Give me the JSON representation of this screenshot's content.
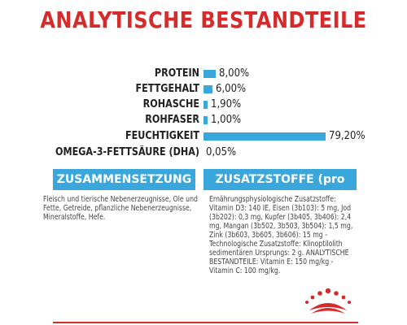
{
  "title": "ANALYTISCHE BESTANDTEILE",
  "colors": {
    "accent_red": "#d52b2b",
    "bar_blue": "#3aa7dc"
  },
  "chart_data": {
    "type": "bar",
    "orientation": "horizontal",
    "categories": [
      "PROTEIN",
      "FETTGEHALT",
      "ROHASCHE",
      "ROHFASER",
      "FEUCHTIGKEIT",
      "OMEGA-3-FETTSÄURE (DHA)"
    ],
    "values": [
      8.0,
      6.0,
      1.9,
      1.0,
      79.2,
      0.05
    ],
    "value_labels": [
      "8,00%",
      "6,00%",
      "1,90%",
      "1,00%",
      "79,20%",
      "0,05%"
    ],
    "grid": false
  },
  "tabs": {
    "composition": "ZUSAMMENSETZUNG",
    "additives": "ZUSATZSTOFFE (pro kg)"
  },
  "composition_text": "Fleisch und tierische Nebenerzeugnisse, Öle und Fette, Getreide, pflanzliche Nebenerzeugnisse, Mineralstoffe, Hefe.",
  "additives_text": "Ernährungsphysiologische Zusatzstoffe: Vitamin D3: 140 IE, Eisen (3b103): 5 mg, Jod (3b202): 0,3 mg, Kupfer (3b405, 3b406): 2,4 mg, Mangan (3b502, 3b503, 3b504): 1,5 mg, Zink (3b603, 3b605, 3b606): 15 mg - Technologische Zusatzstoffe: Klinoptilolith sedimentären Ursprungs: 2 g. ANALYTISCHE BESTANDTEILE: Vitamin E: 150 mg/kg - Vitamin C: 100 mg/kg.",
  "logo": {
    "name": "royal-canin-crown-logo"
  }
}
